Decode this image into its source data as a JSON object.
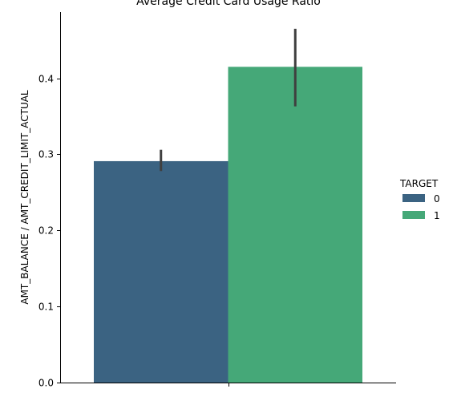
{
  "chart_data": {
    "type": "bar",
    "title": "Average Credit Card Usage Ratio",
    "xlabel": "",
    "ylabel": "AMT_BALANCE / AMT_CREDIT_LIMIT_ACTUAL",
    "ylim": [
      0,
      0.487
    ],
    "yticks": [
      0.0,
      0.1,
      0.2,
      0.3,
      0.4
    ],
    "ytick_labels": [
      "0.0",
      "0.1",
      "0.2",
      "0.3",
      "0.4"
    ],
    "categories": [
      ""
    ],
    "legend": {
      "title": "TARGET",
      "placement": "right"
    },
    "series": [
      {
        "name": "0",
        "color": "#3b6382",
        "values": [
          0.291
        ],
        "ci_low": [
          0.278
        ],
        "ci_high": [
          0.306
        ]
      },
      {
        "name": "1",
        "color": "#45a878",
        "values": [
          0.415
        ],
        "ci_low": [
          0.363
        ],
        "ci_high": [
          0.465
        ]
      }
    ],
    "errorbar_color": "#3f3f3f",
    "grid": false
  }
}
